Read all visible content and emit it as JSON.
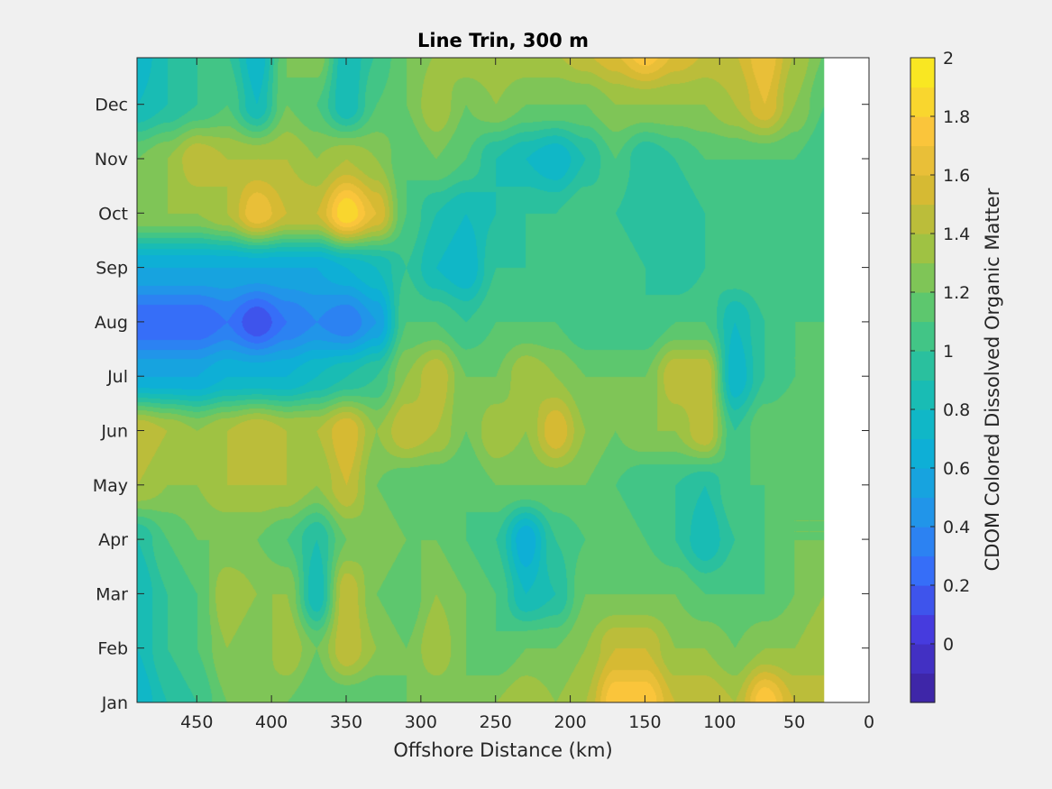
{
  "chart_data": {
    "type": "heatmap",
    "subtype": "filled-contour",
    "title": "Line Trin, 300 m",
    "xlabel": "Offshore Distance (km)",
    "ylabel": "",
    "colorbar_label": "CDOM Colored Dissolved Organic Matter",
    "xlim": [
      490,
      0
    ],
    "x_reversed": true,
    "x_ticks": [
      450,
      400,
      350,
      300,
      250,
      200,
      150,
      100,
      50,
      0
    ],
    "y_ticks": [
      "Jan",
      "Feb",
      "Mar",
      "Apr",
      "May",
      "Jun",
      "Jul",
      "Aug",
      "Sep",
      "Oct",
      "Nov",
      "Dec"
    ],
    "data_x_extent": [
      490,
      30
    ],
    "color_range": [
      -0.2,
      2.0
    ],
    "color_step": 0.1,
    "colorbar_ticks": [
      0,
      0.2,
      0.4,
      0.6,
      0.8,
      1,
      1.2,
      1.4,
      1.6,
      1.8,
      2
    ],
    "colorbar_tick_labels": [
      "0",
      "0.2",
      "0.4",
      "0.6",
      "0.8",
      "1",
      "1.2",
      "1.4",
      "1.6",
      "1.8",
      "2"
    ],
    "colormap": "parula",
    "x": [
      490,
      470,
      450,
      430,
      410,
      390,
      370,
      350,
      330,
      310,
      290,
      270,
      250,
      230,
      210,
      190,
      170,
      150,
      130,
      110,
      90,
      70,
      50,
      30
    ],
    "y": [
      "Jan",
      "Feb",
      "Mar",
      "Apr",
      "May",
      "Jun",
      "Jul",
      "Aug",
      "Sep",
      "Oct",
      "Nov",
      "Dec",
      "Dec+"
    ],
    "values": [
      [
        0.7,
        0.9,
        1.0,
        1.2,
        1.3,
        1.2,
        1.1,
        1.1,
        1.1,
        1.2,
        1.2,
        1.2,
        1.3,
        1.4,
        1.3,
        1.4,
        1.8,
        1.8,
        1.5,
        1.5,
        1.4,
        1.8,
        1.5,
        1.4
      ],
      [
        0.8,
        1.0,
        1.1,
        1.3,
        1.2,
        1.4,
        1.2,
        1.5,
        1.3,
        1.2,
        1.4,
        1.2,
        1.1,
        1.2,
        1.2,
        1.3,
        1.5,
        1.5,
        1.3,
        1.3,
        1.2,
        1.3,
        1.3,
        1.4
      ],
      [
        0.8,
        1.0,
        1.1,
        1.4,
        1.3,
        1.3,
        0.8,
        1.5,
        1.2,
        1.1,
        1.3,
        1.2,
        1.1,
        0.8,
        0.9,
        1.2,
        1.2,
        1.2,
        1.2,
        1.1,
        1.1,
        1.1,
        1.2,
        1.3
      ],
      [
        0.9,
        1.1,
        1.2,
        1.2,
        1.2,
        1.1,
        0.9,
        1.2,
        1.3,
        1.2,
        1.2,
        1.1,
        1.0,
        0.6,
        1.0,
        1.1,
        1.2,
        1.1,
        1.0,
        0.8,
        1.0,
        1.1,
        1.2,
        1.2
      ],
      [
        1.4,
        1.3,
        1.3,
        1.4,
        1.4,
        1.4,
        1.3,
        1.5,
        1.2,
        1.1,
        1.1,
        1.1,
        1.2,
        1.2,
        1.2,
        1.2,
        1.1,
        1.0,
        1.0,
        0.9,
        1.1,
        1.1,
        1.2,
        1.2
      ],
      [
        1.5,
        1.4,
        1.3,
        1.4,
        1.5,
        1.4,
        1.4,
        1.6,
        1.3,
        1.5,
        1.4,
        1.2,
        1.4,
        1.3,
        1.6,
        1.3,
        1.2,
        1.3,
        1.3,
        1.5,
        1.0,
        1.2,
        1.2,
        1.1
      ],
      [
        0.6,
        0.6,
        0.6,
        0.7,
        0.7,
        0.7,
        0.8,
        0.9,
        1.0,
        1.3,
        1.5,
        1.2,
        1.2,
        1.4,
        1.3,
        1.2,
        1.2,
        1.2,
        1.5,
        1.5,
        0.7,
        1.0,
        1.1,
        1.1
      ],
      [
        0.2,
        0.2,
        0.2,
        0.3,
        0.1,
        0.3,
        0.4,
        0.3,
        0.5,
        1.1,
        1.1,
        1.0,
        1.1,
        1.1,
        1.1,
        1.0,
        1.0,
        1.0,
        1.1,
        1.1,
        0.8,
        1.0,
        1.1,
        1.1
      ],
      [
        0.6,
        0.6,
        0.6,
        0.6,
        0.6,
        0.6,
        0.6,
        0.7,
        0.8,
        1.0,
        0.8,
        0.7,
        1.0,
        1.0,
        1.1,
        1.1,
        1.1,
        1.0,
        0.9,
        1.0,
        1.1,
        1.1,
        1.1,
        1.0
      ],
      [
        1.3,
        1.3,
        1.3,
        1.4,
        1.7,
        1.5,
        1.5,
        1.9,
        1.6,
        1.1,
        0.9,
        0.8,
        0.9,
        1.0,
        1.0,
        1.1,
        1.0,
        0.9,
        0.9,
        1.0,
        1.1,
        1.0,
        1.0,
        1.0
      ],
      [
        1.2,
        1.3,
        1.5,
        1.4,
        1.4,
        1.4,
        1.3,
        1.4,
        1.3,
        1.1,
        1.2,
        1.1,
        0.9,
        0.8,
        0.7,
        0.9,
        1.1,
        0.9,
        1.0,
        1.1,
        1.1,
        1.1,
        1.1,
        1.0
      ],
      [
        0.8,
        0.9,
        1.0,
        1.1,
        0.8,
        1.2,
        1.1,
        0.8,
        1.1,
        1.2,
        1.4,
        1.2,
        1.3,
        1.2,
        1.2,
        1.2,
        1.3,
        1.3,
        1.3,
        1.3,
        1.4,
        1.6,
        1.3,
        1.1
      ],
      [
        0.7,
        0.9,
        1.0,
        1.0,
        0.7,
        1.2,
        1.3,
        0.8,
        1.0,
        1.2,
        1.3,
        1.4,
        1.4,
        1.4,
        1.4,
        1.5,
        1.6,
        1.8,
        1.6,
        1.5,
        1.5,
        1.7,
        1.4,
        1.2
      ]
    ]
  }
}
